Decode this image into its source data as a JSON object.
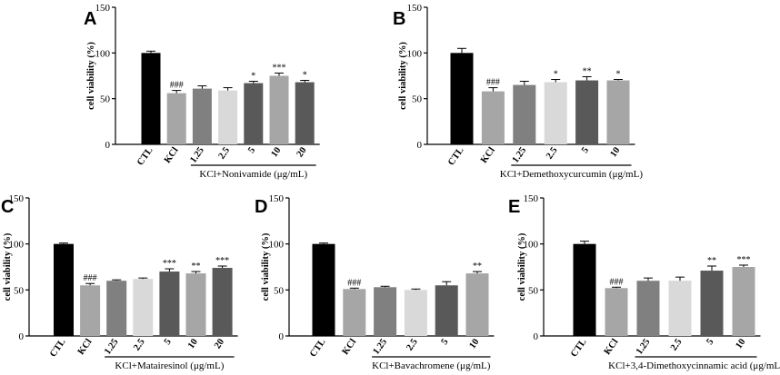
{
  "chart_data": [
    {
      "type": "bar",
      "panel_letter": "A",
      "ylabel": "cell viability (%)",
      "ylim": [
        0,
        150
      ],
      "yticks": [
        0,
        50,
        100,
        150
      ],
      "categories": [
        "CTL",
        "KCl",
        "1.25",
        "2.5",
        "5",
        "10",
        "20"
      ],
      "values": [
        100,
        56,
        61,
        59,
        67,
        75,
        68
      ],
      "errors": [
        2,
        3,
        3,
        3,
        2,
        3,
        2
      ],
      "colors": [
        "#000000",
        "#a6a6a6",
        "#808080",
        "#d9d9d9",
        "#595959",
        "#a6a6a6",
        "#595959"
      ],
      "annotations": [
        "",
        "###",
        "",
        "",
        "*",
        "***",
        "*"
      ],
      "group_label": "KCl+Nonivamide (μg/mL)",
      "group_start": 2
    },
    {
      "type": "bar",
      "panel_letter": "B",
      "ylabel": "cell viability (%)",
      "ylim": [
        0,
        150
      ],
      "yticks": [
        0,
        50,
        100,
        150
      ],
      "categories": [
        "CTL",
        "KCl",
        "1.25",
        "2.5",
        "5",
        "10"
      ],
      "values": [
        100,
        58,
        65,
        68,
        70,
        70
      ],
      "errors": [
        5,
        4,
        4,
        3,
        4,
        1
      ],
      "colors": [
        "#000000",
        "#a6a6a6",
        "#808080",
        "#d9d9d9",
        "#595959",
        "#a6a6a6"
      ],
      "annotations": [
        "",
        "###",
        "",
        "*",
        "**",
        "*"
      ],
      "group_label": "KCl+Demethoxycurcumin (μg/mL)",
      "group_start": 2
    },
    {
      "type": "bar",
      "panel_letter": "C",
      "ylabel": "cell viability (%)",
      "ylim": [
        0,
        150
      ],
      "yticks": [
        0,
        50,
        100,
        150
      ],
      "categories": [
        "CTL",
        "KCl",
        "1.25",
        "2.5",
        "5",
        "10",
        "20"
      ],
      "values": [
        100,
        55,
        60,
        62,
        70,
        68,
        74
      ],
      "errors": [
        1,
        2,
        1,
        1,
        3,
        2,
        2
      ],
      "colors": [
        "#000000",
        "#a6a6a6",
        "#808080",
        "#d9d9d9",
        "#595959",
        "#a6a6a6",
        "#595959"
      ],
      "annotations": [
        "",
        "###",
        "",
        "",
        "***",
        "**",
        "***"
      ],
      "group_label": "KCl+Matairesinol (μg/mL)",
      "group_start": 2
    },
    {
      "type": "bar",
      "panel_letter": "D",
      "ylabel": "cell viability (%)",
      "ylim": [
        0,
        150
      ],
      "yticks": [
        0,
        50,
        100,
        150
      ],
      "categories": [
        "CTL",
        "KCl",
        "1.25",
        "2.5",
        "5",
        "10"
      ],
      "values": [
        100,
        51,
        53,
        50,
        55,
        68
      ],
      "errors": [
        1,
        1,
        1,
        1,
        4,
        2
      ],
      "colors": [
        "#000000",
        "#a6a6a6",
        "#808080",
        "#d9d9d9",
        "#595959",
        "#a6a6a6"
      ],
      "annotations": [
        "",
        "###",
        "",
        "",
        "",
        "**"
      ],
      "group_label": "KCl+Bavachromene (μg/mL)",
      "group_start": 2
    },
    {
      "type": "bar",
      "panel_letter": "E",
      "ylabel": "cell viability (%)",
      "ylim": [
        0,
        150
      ],
      "yticks": [
        0,
        50,
        100,
        150
      ],
      "categories": [
        "CTL",
        "KCl",
        "1.25",
        "2.5",
        "5",
        "10"
      ],
      "values": [
        100,
        52,
        60,
        60,
        71,
        75
      ],
      "errors": [
        3,
        1,
        3,
        4,
        5,
        2
      ],
      "colors": [
        "#000000",
        "#a6a6a6",
        "#808080",
        "#d9d9d9",
        "#595959",
        "#a6a6a6"
      ],
      "annotations": [
        "",
        "###",
        "",
        "",
        "**",
        "***"
      ],
      "group_label": "KCl+3,4-Dimethoxycinnamic acid (μg/mL)",
      "group_start": 2
    }
  ]
}
